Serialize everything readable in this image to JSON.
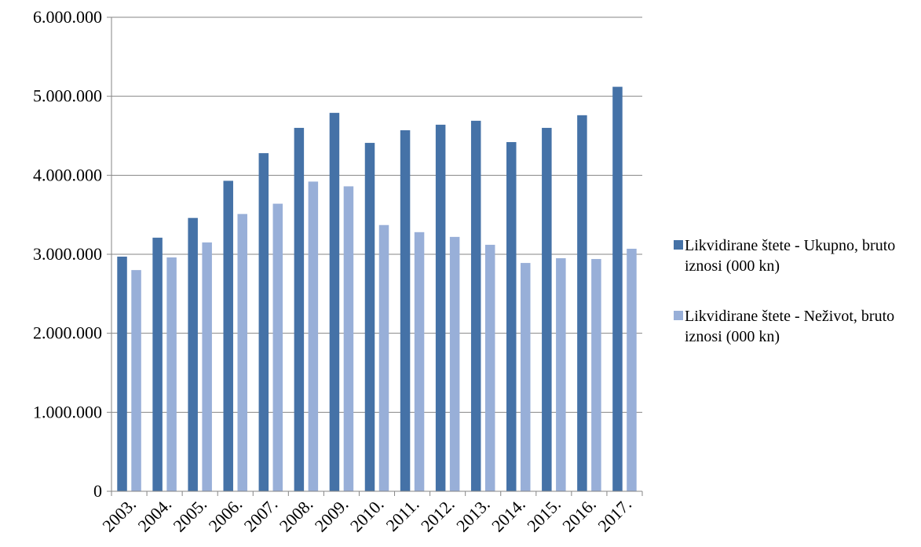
{
  "chart_data": {
    "type": "bar",
    "categories": [
      "2003.",
      "2004.",
      "2005.",
      "2006.",
      "2007.",
      "2008.",
      "2009.",
      "2010.",
      "2011.",
      "2012.",
      "2013.",
      "2014.",
      "2015.",
      "2016.",
      "2017."
    ],
    "series": [
      {
        "name": "Likvidirane štete - Ukupno, bruto iznosi (000 kn)",
        "color": "#4572A7",
        "values": [
          2970000,
          3210000,
          3460000,
          3930000,
          4280000,
          4600000,
          4790000,
          4410000,
          4570000,
          4640000,
          4690000,
          4420000,
          4600000,
          4760000,
          5120000
        ]
      },
      {
        "name": "Likvidirane štete - Neživot, bruto iznosi (000 kn)",
        "color": "#98AFD8",
        "values": [
          2800000,
          2960000,
          3150000,
          3510000,
          3640000,
          3920000,
          3860000,
          3370000,
          3280000,
          3220000,
          3120000,
          2890000,
          2950000,
          2940000,
          3070000
        ]
      }
    ],
    "ylim": [
      0,
      6000000
    ],
    "yticks": [
      0,
      1000000,
      2000000,
      3000000,
      4000000,
      5000000,
      6000000
    ],
    "ytick_labels": [
      "0",
      "1.000.000",
      "2.000.000",
      "3.000.000",
      "4.000.000",
      "5.000.000",
      "6.000.000"
    ],
    "grid": true,
    "legend_position": "right"
  }
}
